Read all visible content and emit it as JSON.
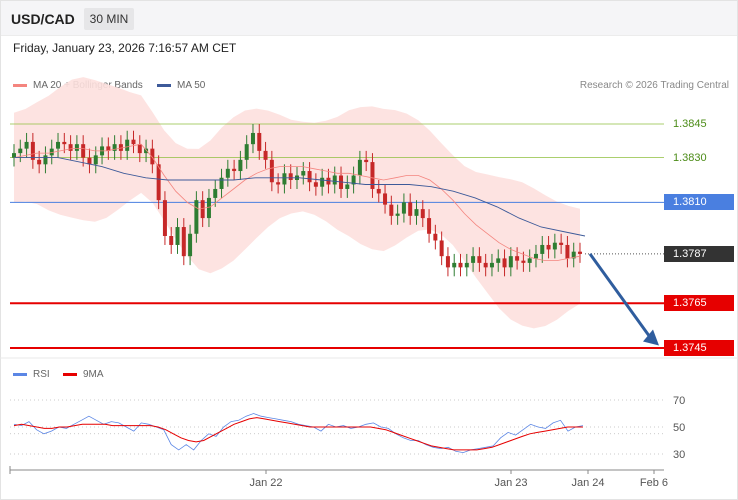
{
  "header": {
    "symbol": "USD/CAD",
    "timeframe": "30 MIN"
  },
  "datetime": "Friday, January 23, 2026 7:16:57 AM CET",
  "legend": {
    "ma20": "MA 20 + Bollinger Bands",
    "ma50": "MA 50",
    "rsi": "RSI",
    "ma9": "9MA"
  },
  "credit": "Research © 2026 Trading Central",
  "colors": {
    "ma20": "#f4857f",
    "ma50": "#3d5a99",
    "band": "#fde0de",
    "up": "#2e7d32",
    "down": "#c62828",
    "resistance": "#8fbf3f",
    "pivot": "#4a7fe0",
    "support": "#e60000",
    "rsi": "#5b86e5",
    "ma9": "#e60000",
    "arrow": "#2f5d9e"
  },
  "chart_data": [
    {
      "type": "candlestick",
      "title": "USD/CAD 30 MIN",
      "x_tick_labels": [
        "Jan 22",
        "Jan 23",
        "Jan 24",
        "Feb 6"
      ],
      "levels": [
        {
          "label": "1.3845",
          "value": 1.3845,
          "kind": "resistance"
        },
        {
          "label": "1.3830",
          "value": 1.383,
          "kind": "resistance"
        },
        {
          "label": "1.3810",
          "value": 1.381,
          "kind": "pivot"
        },
        {
          "label": "1.3787",
          "value": 1.3787,
          "kind": "last"
        },
        {
          "label": "1.3765",
          "value": 1.3765,
          "kind": "support"
        },
        {
          "label": "1.3745",
          "value": 1.3745,
          "kind": "support"
        }
      ],
      "closes": [
        1.3832,
        1.3834,
        1.3837,
        1.3829,
        1.3827,
        1.3831,
        1.3834,
        1.3837,
        1.3836,
        1.3833,
        1.3836,
        1.383,
        1.3827,
        1.3831,
        1.3835,
        1.3833,
        1.3836,
        1.3833,
        1.3838,
        1.3836,
        1.3832,
        1.3834,
        1.3827,
        1.3811,
        1.3795,
        1.3791,
        1.3799,
        1.3786,
        1.3796,
        1.3811,
        1.3803,
        1.3812,
        1.3816,
        1.3821,
        1.3825,
        1.3824,
        1.3829,
        1.3836,
        1.3841,
        1.3833,
        1.3829,
        1.3819,
        1.3818,
        1.3823,
        1.382,
        1.3822,
        1.3824,
        1.3819,
        1.3817,
        1.3821,
        1.3818,
        1.3822,
        1.3816,
        1.3818,
        1.3822,
        1.3829,
        1.3828,
        1.3816,
        1.3814,
        1.3809,
        1.3804,
        1.3805,
        1.381,
        1.3804,
        1.3807,
        1.3803,
        1.3796,
        1.3793,
        1.3786,
        1.3781,
        1.3783,
        1.3781,
        1.3783,
        1.3786,
        1.3783,
        1.3781,
        1.3783,
        1.3785,
        1.3781,
        1.3786,
        1.3784,
        1.3783,
        1.3785,
        1.3787,
        1.3791,
        1.3789,
        1.3792,
        1.3791,
        1.3785,
        1.3788,
        1.3787
      ],
      "ma20_approx": [
        1.383,
        1.3831,
        1.3832,
        1.3832,
        1.3833,
        1.3834,
        1.3834,
        1.3833,
        1.3833,
        1.3834,
        1.3835,
        1.3836,
        1.383,
        1.3822,
        1.3815,
        1.381,
        1.3807,
        1.3808,
        1.3812,
        1.3816,
        1.382,
        1.3823,
        1.3825,
        1.3826,
        1.3826,
        1.3826,
        1.3825,
        1.3824,
        1.3823,
        1.3823,
        1.3822,
        1.3821,
        1.382,
        1.3821,
        1.3822,
        1.3822,
        1.382,
        1.3816,
        1.3811,
        1.3805,
        1.38,
        1.3796,
        1.3792,
        1.3789,
        1.3787,
        1.3785,
        1.3784,
        1.3784,
        1.3785,
        1.3786
      ],
      "ma50_approx": [
        1.383,
        1.383,
        1.383,
        1.3828,
        1.3826,
        1.3823,
        1.3821,
        1.382,
        1.382,
        1.382,
        1.382,
        1.3821,
        1.3821,
        1.3821,
        1.382,
        1.3819,
        1.3818,
        1.3818,
        1.3818,
        1.3817,
        1.3815,
        1.3812,
        1.3808,
        1.3803,
        1.3799,
        1.3797,
        1.3795
      ],
      "ylabel": "",
      "ylim": [
        1.3739,
        1.386
      ]
    },
    {
      "type": "line",
      "title": "RSI",
      "y_tick_labels": [
        "70",
        "50",
        "30"
      ],
      "ylim": [
        20,
        80
      ],
      "series": [
        {
          "name": "RSI",
          "values": [
            52,
            51,
            54,
            48,
            45,
            47,
            50,
            49,
            52,
            55,
            58,
            55,
            52,
            54,
            53,
            50,
            47,
            53,
            52,
            50,
            48,
            37,
            33,
            37,
            33,
            40,
            45,
            43,
            50,
            54,
            55,
            58,
            60,
            58,
            57,
            56,
            55,
            54,
            52,
            51,
            50,
            47,
            52,
            50,
            51,
            49,
            50,
            52,
            53,
            50,
            49,
            45,
            42,
            40,
            40,
            37,
            35,
            34,
            35,
            32,
            31,
            33,
            34,
            35,
            36,
            42,
            46,
            44,
            48,
            52,
            50,
            49,
            53,
            55,
            47,
            50,
            51
          ]
        },
        {
          "name": "9MA",
          "values": [
            51,
            52,
            51,
            50,
            49,
            49,
            50,
            50,
            51,
            52,
            52,
            52,
            52,
            51,
            51,
            51,
            51,
            51,
            51,
            50,
            48,
            45,
            42,
            40,
            39,
            40,
            43,
            46,
            49,
            52,
            54,
            56,
            57,
            56,
            55,
            54,
            53,
            52,
            51,
            50,
            50,
            50,
            50,
            50,
            50,
            50,
            50,
            50,
            49,
            48,
            46,
            44,
            42,
            40,
            38,
            36,
            35,
            34,
            33,
            33,
            33,
            33,
            34,
            35,
            37,
            39,
            41,
            43,
            45,
            46,
            47,
            48,
            49,
            50,
            50,
            50
          ]
        }
      ]
    }
  ]
}
